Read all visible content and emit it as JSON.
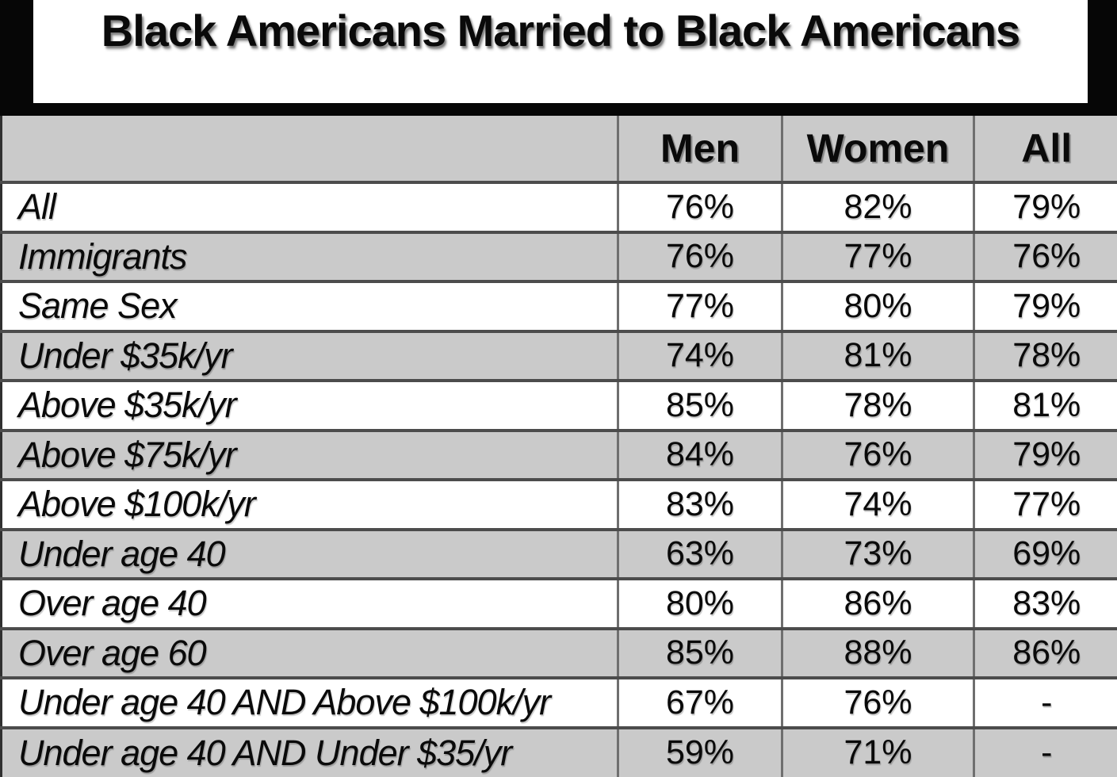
{
  "title": "Black Americans Married to Black Americans",
  "chart_data": {
    "type": "table",
    "title": "Black Americans Married to Black Americans",
    "columns": [
      "Men",
      "Women",
      "All"
    ],
    "rows": [
      {
        "label": "All",
        "values": [
          "76%",
          "82%",
          "79%"
        ]
      },
      {
        "label": "Immigrants",
        "values": [
          "76%",
          "77%",
          "76%"
        ]
      },
      {
        "label": "Same Sex",
        "values": [
          "77%",
          "80%",
          "79%"
        ]
      },
      {
        "label": "Under $35k/yr",
        "values": [
          "74%",
          "81%",
          "78%"
        ]
      },
      {
        "label": "Above $35k/yr",
        "values": [
          "85%",
          "78%",
          "81%"
        ]
      },
      {
        "label": "Above $75k/yr",
        "values": [
          "84%",
          "76%",
          "79%"
        ]
      },
      {
        "label": "Above $100k/yr",
        "values": [
          "83%",
          "74%",
          "77%"
        ]
      },
      {
        "label": "Under age 40",
        "values": [
          "63%",
          "73%",
          "69%"
        ]
      },
      {
        "label": "Over age 40",
        "values": [
          "80%",
          "86%",
          "83%"
        ]
      },
      {
        "label": "Over age 60",
        "values": [
          "85%",
          "88%",
          "86%"
        ]
      },
      {
        "label": "Under age 40 AND Above $100k/yr",
        "values": [
          "67%",
          "76%",
          "-"
        ]
      },
      {
        "label": "Under age 40 AND Under $35/yr",
        "values": [
          "59%",
          "71%",
          "-"
        ]
      }
    ],
    "layout": {
      "stripe_color": "#cacaca",
      "banner_color": "#060606",
      "first_row_plain": true
    }
  }
}
